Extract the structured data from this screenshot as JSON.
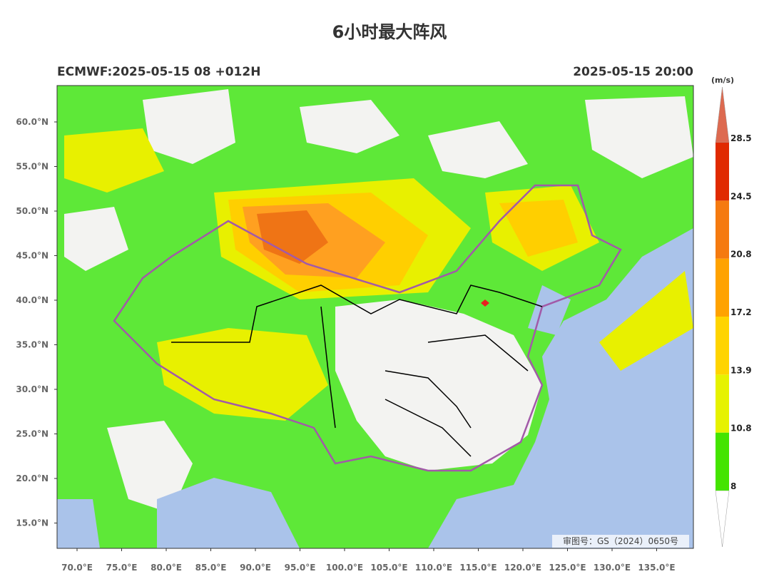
{
  "title": "6小时最大阵风",
  "run_info": "ECMWF:2025-05-15 08 +012H",
  "valid_time": "2025-05-15 20:00",
  "colorbar": {
    "unit": "(m/s)",
    "levels": [
      8,
      10.8,
      13.9,
      17.2,
      20.8,
      24.5,
      28.5
    ],
    "colors": [
      "#44e400",
      "#e6f200",
      "#ffd400",
      "#ffa200",
      "#f57a10",
      "#e02a00"
    ],
    "over_color": "#dd6a50",
    "under_color": "#ffffff"
  },
  "lat_labels": [
    "60.0°N",
    "55.0°N",
    "50.0°N",
    "45.0°N",
    "40.0°N",
    "35.0°N",
    "30.0°N",
    "25.0°N",
    "20.0°N",
    "15.0°N"
  ],
  "lon_labels": [
    "70.0°E",
    "75.0°E",
    "80.0°E",
    "85.0°E",
    "90.0°E",
    "95.0°E",
    "100.0°E",
    "105.0°E",
    "110.0°E",
    "115.0°E",
    "120.0°E",
    "125.0°E",
    "130.0°E",
    "135.0°E"
  ],
  "approval_number": "审图号：GS（2024）0650号"
}
